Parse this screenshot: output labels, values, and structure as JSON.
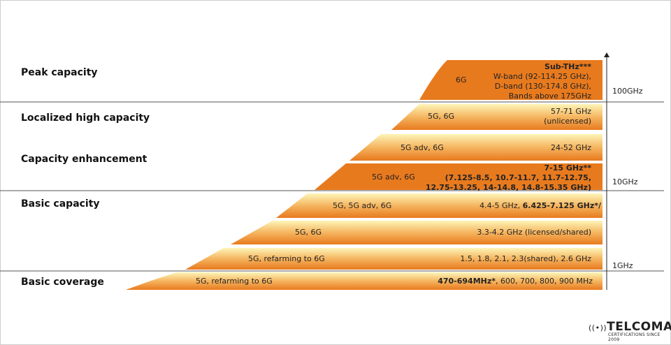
{
  "categories": [
    "Peak capacity",
    "Localized high capacity",
    "Capacity enhancement",
    "Basic capacity",
    "Basic coverage"
  ],
  "axis": [
    "100GHz",
    "10GHz",
    "1GHz"
  ],
  "bands": [
    {
      "tech": "6G",
      "bold": "Sub-THz***",
      "lines": [
        "W-band (92-114.25 GHz),",
        "D-band (130-174.8 GHz),",
        "Bands above 175GHz"
      ]
    },
    {
      "tech": "5G, 6G",
      "lines": [
        "57-71 GHz",
        "(unlicensed)"
      ]
    },
    {
      "tech": "5G adv, 6G",
      "lines": [
        "24-52 GHz"
      ]
    },
    {
      "tech": "5G adv, 6G",
      "bold_lines": [
        "7-15 GHz**",
        "(7.125-8.5, 10.7-11.7, 11.7-12.75,",
        "12.75-13.25, 14-14.8, 14.8-15.35 GHz)"
      ]
    },
    {
      "tech": "5G, 5G adv, 6G",
      "pre": "4.4-5 GHz, ",
      "bold": "6.425-7.125 GHz*/"
    },
    {
      "tech": "5G, 6G",
      "lines": [
        "3.3-4.2 GHz (licensed/shared)"
      ]
    },
    {
      "tech": "5G, refarming to 6G",
      "lines": [
        "1.5, 1.8, 2.1, 2.3(shared), 2.6 GHz"
      ]
    },
    {
      "tech": "5G, refarming to 6G",
      "bold": "470-694MHz*",
      "post": ", 600, 700, 800, 900 MHz"
    }
  ],
  "logo": {
    "name": "TELCOMA",
    "tagline": "CERTIFICATIONS SINCE 2009"
  },
  "colors": {
    "orange": "#e87a1e",
    "light": "#fdf3b0"
  }
}
